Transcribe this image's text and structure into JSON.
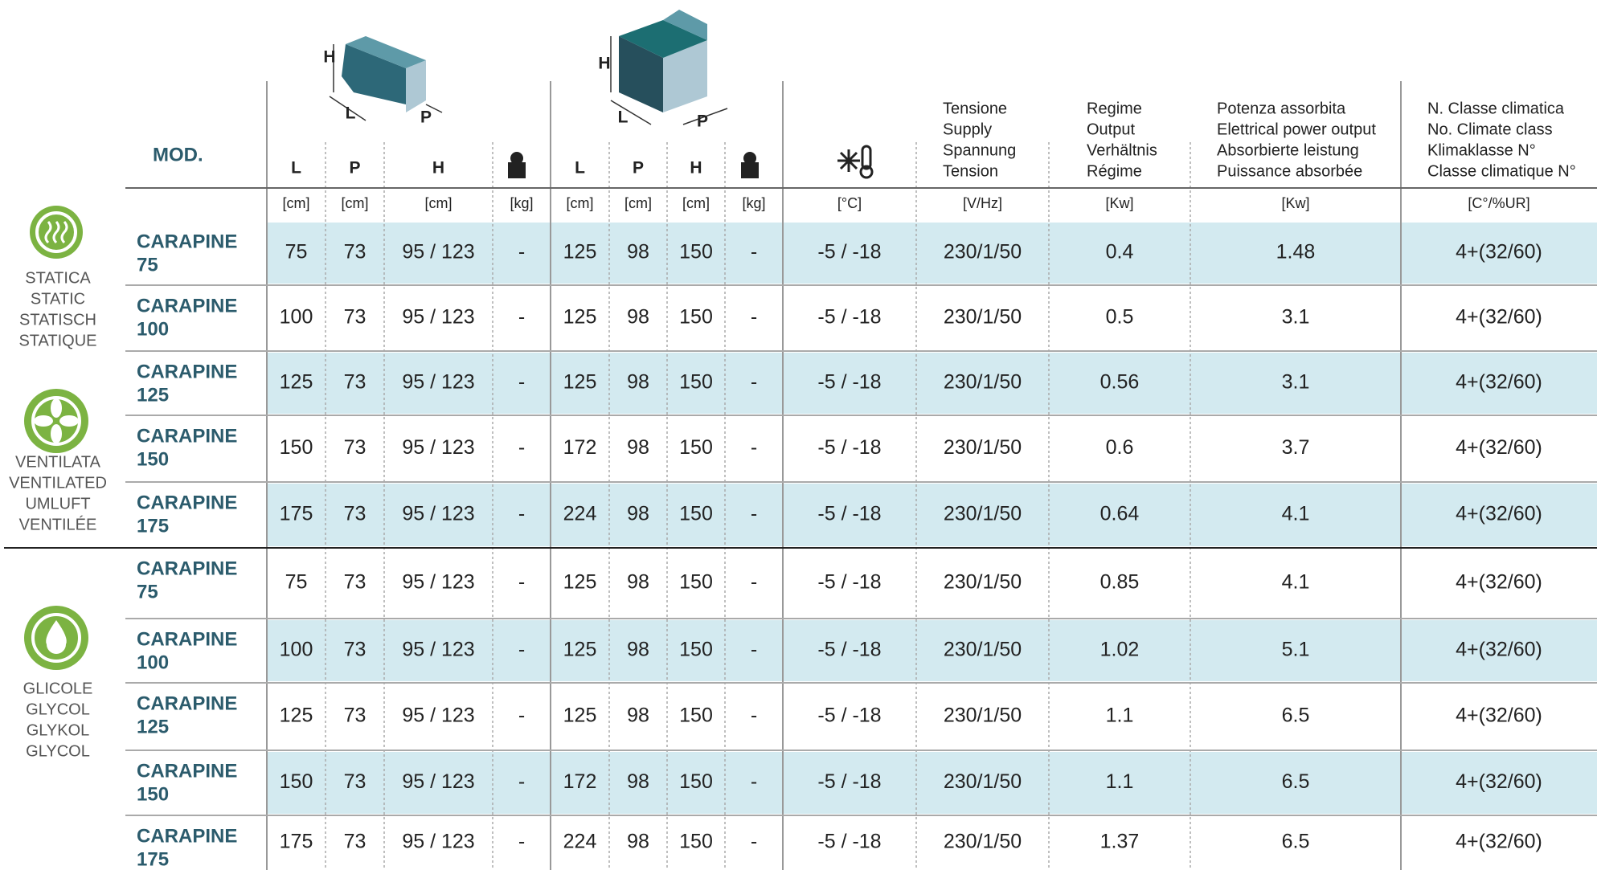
{
  "header": {
    "mod": "MOD.",
    "dims": [
      "L",
      "P",
      "H",
      "L",
      "P",
      "H"
    ],
    "multi": [
      [
        "Tensione",
        "Supply",
        "Spannung",
        "Tension"
      ],
      [
        "Regime",
        "Output",
        "Verhältnis",
        "Régime"
      ],
      [
        "Potenza assorbita",
        "Elettrical power output",
        "Absorbierte leistung",
        "Puissance absorbée"
      ],
      [
        "N. Classe climatica",
        "No. Climate class",
        "Klimaklasse N°",
        "Classe climatique N°"
      ]
    ],
    "drawing_labels": [
      [
        "H",
        "L",
        "P"
      ],
      [
        "H",
        "L",
        "P"
      ]
    ]
  },
  "units": [
    "[cm]",
    "[cm]",
    "[cm]",
    "[kg]",
    "[cm]",
    "[cm]",
    "[cm]",
    "[kg]",
    "[°C]",
    "[V/Hz]",
    "[Kw]",
    "[Kw]",
    "[C°/%UR]"
  ],
  "groups": [
    {
      "labels": [
        "STATICA",
        "STATIC",
        "STATISCH",
        "STATIQUE"
      ]
    },
    {
      "labels": [
        "VENTILATA",
        "VENTILATED",
        "UMLUFT",
        "VENTILÉE"
      ]
    },
    {
      "labels": [
        "GLICOLE",
        "GLYCOL",
        "GLYKOL",
        "GLYCOL"
      ]
    }
  ],
  "rows": [
    {
      "model": [
        "CARAPINE",
        "75"
      ],
      "cells": [
        "75",
        "73",
        "95 / 123",
        "-",
        "125",
        "98",
        "150",
        "-",
        "-5 / -18",
        "230/1/50",
        "0.4",
        "1.48",
        "4+(32/60)"
      ]
    },
    {
      "model": [
        "CARAPINE",
        "100"
      ],
      "cells": [
        "100",
        "73",
        "95 / 123",
        "-",
        "125",
        "98",
        "150",
        "-",
        "-5 / -18",
        "230/1/50",
        "0.5",
        "3.1",
        "4+(32/60)"
      ]
    },
    {
      "model": [
        "CARAPINE",
        "125"
      ],
      "cells": [
        "125",
        "73",
        "95 / 123",
        "-",
        "125",
        "98",
        "150",
        "-",
        "-5 / -18",
        "230/1/50",
        "0.56",
        "3.1",
        "4+(32/60)"
      ]
    },
    {
      "model": [
        "CARAPINE",
        "150"
      ],
      "cells": [
        "150",
        "73",
        "95 / 123",
        "-",
        "172",
        "98",
        "150",
        "-",
        "-5 / -18",
        "230/1/50",
        "0.6",
        "3.7",
        "4+(32/60)"
      ]
    },
    {
      "model": [
        "CARAPINE",
        "175"
      ],
      "cells": [
        "175",
        "73",
        "95 / 123",
        "-",
        "224",
        "98",
        "150",
        "-",
        "-5 / -18",
        "230/1/50",
        "0.64",
        "4.1",
        "4+(32/60)"
      ]
    },
    {
      "model": [
        "CARAPINE",
        "75"
      ],
      "cells": [
        "75",
        "73",
        "95 / 123",
        "-",
        "125",
        "98",
        "150",
        "-",
        "-5 / -18",
        "230/1/50",
        "0.85",
        "4.1",
        "4+(32/60)"
      ]
    },
    {
      "model": [
        "CARAPINE",
        "100"
      ],
      "cells": [
        "100",
        "73",
        "95 / 123",
        "-",
        "125",
        "98",
        "150",
        "-",
        "-5 / -18",
        "230/1/50",
        "1.02",
        "5.1",
        "4+(32/60)"
      ]
    },
    {
      "model": [
        "CARAPINE",
        "125"
      ],
      "cells": [
        "125",
        "73",
        "95 / 123",
        "-",
        "125",
        "98",
        "150",
        "-",
        "-5 / -18",
        "230/1/50",
        "1.1",
        "6.5",
        "4+(32/60)"
      ]
    },
    {
      "model": [
        "CARAPINE",
        "150"
      ],
      "cells": [
        "150",
        "73",
        "95 / 123",
        "-",
        "172",
        "98",
        "150",
        "-",
        "-5 / -18",
        "230/1/50",
        "1.1",
        "6.5",
        "4+(32/60)"
      ]
    },
    {
      "model": [
        "CARAPINE",
        "175"
      ],
      "cells": [
        "175",
        "73",
        "95 / 123",
        "-",
        "224",
        "98",
        "150",
        "-",
        "-5 / -18",
        "230/1/50",
        "1.37",
        "6.5",
        "4+(32/60)"
      ]
    }
  ]
}
